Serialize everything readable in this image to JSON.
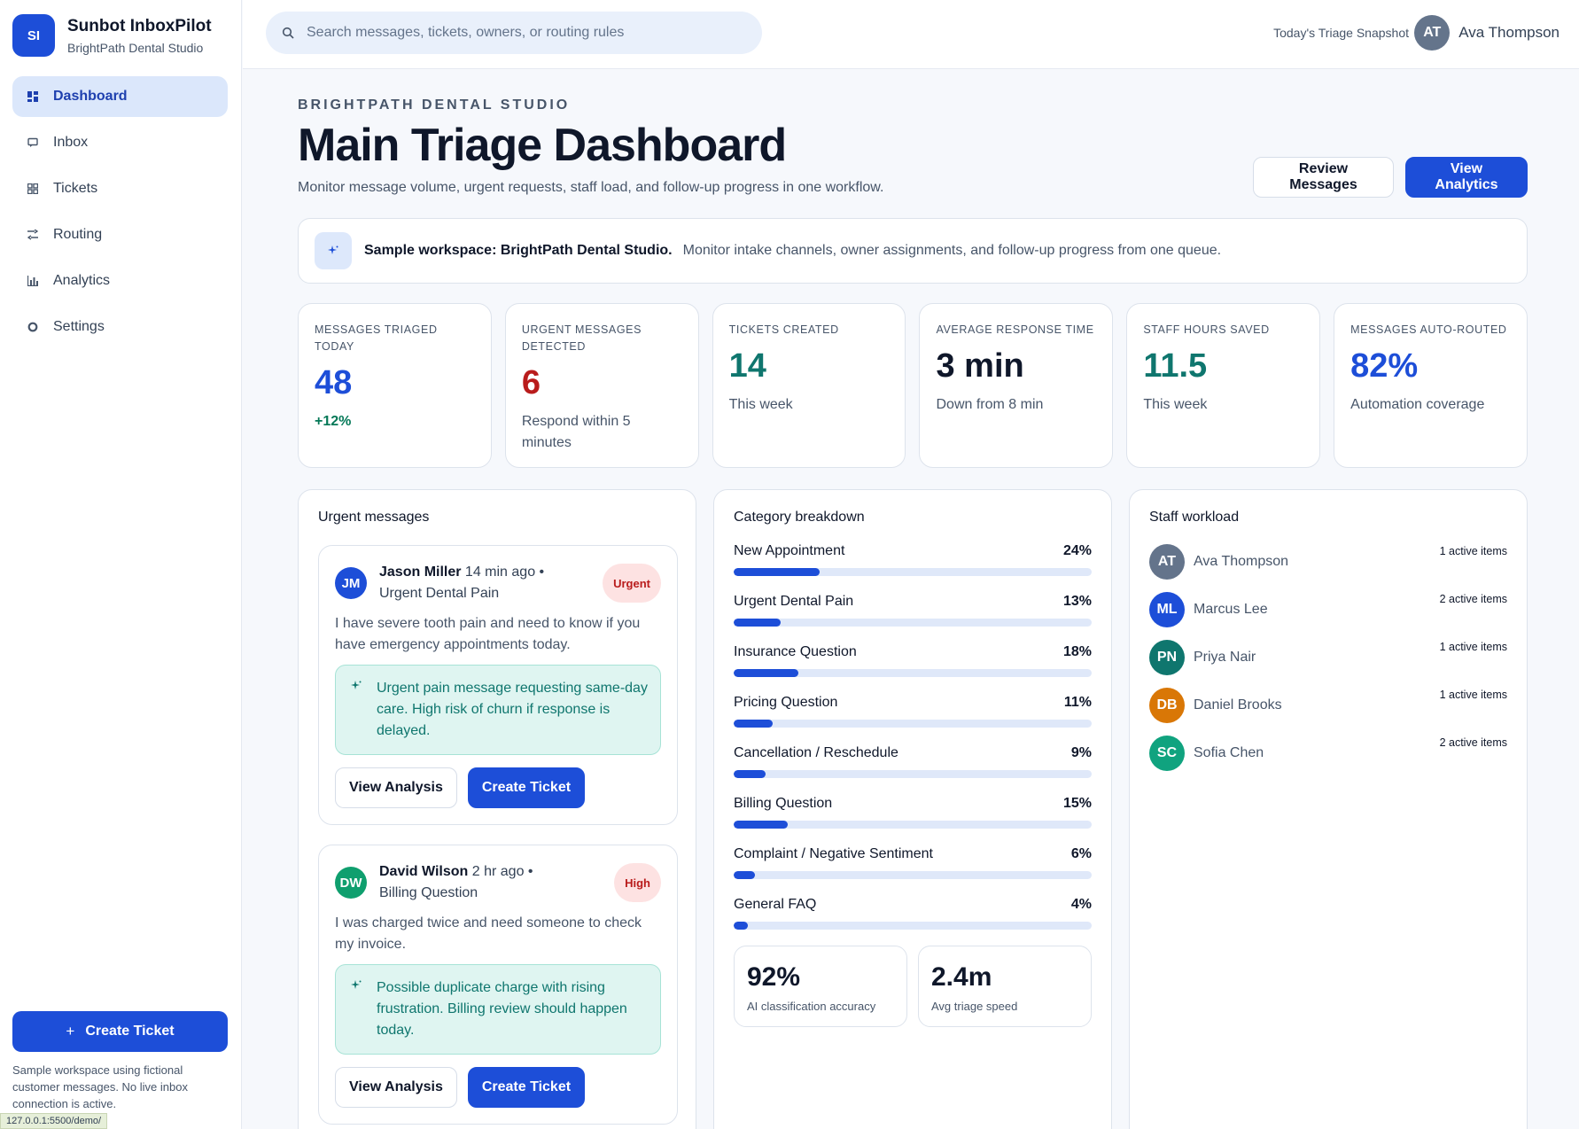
{
  "brand": {
    "initials": "SI",
    "name": "Sunbot InboxPilot",
    "workspace": "BrightPath Dental Studio"
  },
  "nav": [
    {
      "label": "Dashboard",
      "icon": "dashboard-icon",
      "active": true
    },
    {
      "label": "Inbox",
      "icon": "inbox-icon",
      "active": false
    },
    {
      "label": "Tickets",
      "icon": "tickets-icon",
      "active": false
    },
    {
      "label": "Routing",
      "icon": "routing-icon",
      "active": false
    },
    {
      "label": "Analytics",
      "icon": "analytics-icon",
      "active": false
    },
    {
      "label": "Settings",
      "icon": "settings-icon",
      "active": false
    }
  ],
  "sidebar_footer": {
    "create_label": "Create Ticket",
    "note": "Sample workspace using fictional customer messages. No live inbox connection is active.",
    "status_url": "127.0.0.1:5500/demo/"
  },
  "topbar": {
    "search_placeholder": "Search messages, tickets, owners, or routing rules",
    "snapshot_label": "Today's Triage Snapshot",
    "user_initials": "AT",
    "user_name": "Ava Thompson"
  },
  "header": {
    "eyebrow": "BRIGHTPATH DENTAL STUDIO",
    "title": "Main Triage Dashboard",
    "subtitle": "Monitor message volume, urgent requests, staff load, and follow-up progress in one workflow.",
    "review_label": "Review Messages",
    "analytics_label": "View Analytics"
  },
  "banner": {
    "bold": "Sample workspace: BrightPath Dental Studio.",
    "text": "Monitor intake channels, owner assignments, and follow-up progress from one queue."
  },
  "stats": [
    {
      "label": "MESSAGES TRIAGED TODAY",
      "value": "48",
      "note": "+12%",
      "tone": "blue"
    },
    {
      "label": "URGENT MESSAGES DETECTED",
      "value": "6",
      "note": "Respond within 5 minutes",
      "tone": "red"
    },
    {
      "label": "TICKETS CREATED",
      "value": "14",
      "note": "This week",
      "tone": "teal"
    },
    {
      "label": "AVERAGE RESPONSE TIME",
      "value": "3 min",
      "note": "Down from 8 min",
      "tone": "dark"
    },
    {
      "label": "STAFF HOURS SAVED",
      "value": "11.5",
      "note": "This week",
      "tone": "teal"
    },
    {
      "label": "MESSAGES AUTO-ROUTED",
      "value": "82%",
      "note": "Automation coverage",
      "tone": "blue"
    }
  ],
  "urgent": {
    "title": "Urgent messages",
    "messages": [
      {
        "initials": "JM",
        "avatar_color": "#1d4ed8",
        "name": "Jason Miller",
        "meta": " 14 min ago • Urgent Dental Pain",
        "badge": "Urgent",
        "body": "I have severe tooth pain and need to know if you have emergency appointments today.",
        "ai": "Urgent pain message requesting same-day care. High risk of churn if response is delayed.",
        "view_label": "View Analysis",
        "create_label": "Create Ticket"
      },
      {
        "initials": "DW",
        "avatar_color": "#0f9f6e",
        "name": "David Wilson",
        "meta": " 2 hr ago • Billing Question",
        "badge": "High",
        "body": "I was charged twice and need someone to check my invoice.",
        "ai": "Possible duplicate charge with rising frustration. Billing review should happen today.",
        "view_label": "View Analysis",
        "create_label": "Create Ticket"
      }
    ]
  },
  "categories": {
    "title": "Category breakdown",
    "items": [
      {
        "label": "New Appointment",
        "pct": "24%",
        "value": 24
      },
      {
        "label": "Urgent Dental Pain",
        "pct": "13%",
        "value": 13
      },
      {
        "label": "Insurance Question",
        "pct": "18%",
        "value": 18
      },
      {
        "label": "Pricing Question",
        "pct": "11%",
        "value": 11
      },
      {
        "label": "Cancellation / Reschedule",
        "pct": "9%",
        "value": 9
      },
      {
        "label": "Billing Question",
        "pct": "15%",
        "value": 15
      },
      {
        "label": "Complaint / Negative Sentiment",
        "pct": "6%",
        "value": 6
      },
      {
        "label": "General FAQ",
        "pct": "4%",
        "value": 4
      }
    ],
    "accuracy_value": "92%",
    "accuracy_label": "AI classification accuracy",
    "speed_value": "2.4m",
    "speed_label": "Avg triage speed"
  },
  "staff": {
    "title": "Staff workload",
    "members": [
      {
        "initials": "AT",
        "name": "Ava Thompson",
        "count": "1 active items",
        "color": "#64748b"
      },
      {
        "initials": "ML",
        "name": "Marcus Lee",
        "count": "2 active items",
        "color": "#1d4ed8"
      },
      {
        "initials": "PN",
        "name": "Priya Nair",
        "count": "1 active items",
        "color": "#0f766e"
      },
      {
        "initials": "DB",
        "name": "Daniel Brooks",
        "count": "1 active items",
        "color": "#d97706"
      },
      {
        "initials": "SC",
        "name": "Sofia Chen",
        "count": "2 active items",
        "color": "#10a37f"
      }
    ]
  },
  "colors": {
    "accent": "#1d4ed8",
    "urgent": "#b91c1c",
    "teal": "#0f766e",
    "success": "#047857"
  }
}
